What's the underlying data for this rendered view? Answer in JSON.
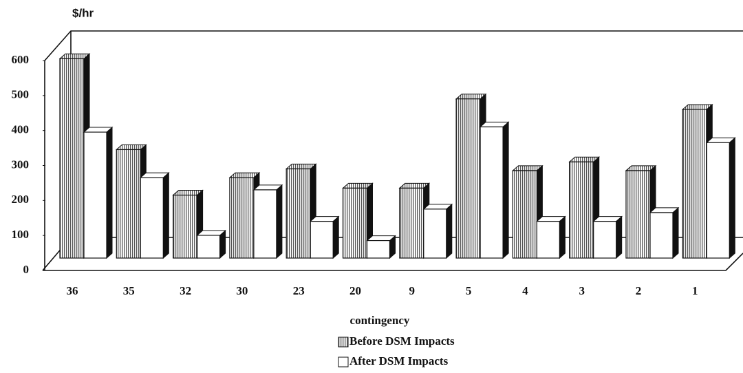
{
  "chart_data": {
    "type": "bar3d",
    "title": "$/hr",
    "x_label": "contingency",
    "categories": [
      "36",
      "35",
      "32",
      "30",
      "23",
      "20",
      "9",
      "5",
      "4",
      "3",
      "2",
      "1"
    ],
    "series": [
      {
        "name": "Before DSM Impacts",
        "color": "#555555",
        "values": [
          570,
          310,
          180,
          230,
          255,
          200,
          200,
          455,
          250,
          275,
          250,
          425
        ]
      },
      {
        "name": "After DSM Impacts",
        "color": "#ffffff",
        "values": [
          360,
          230,
          65,
          195,
          105,
          50,
          140,
          375,
          105,
          105,
          130,
          330
        ]
      }
    ],
    "ylim": [
      0,
      600
    ],
    "yticks": [
      0,
      100,
      200,
      300,
      400,
      500,
      600
    ]
  }
}
